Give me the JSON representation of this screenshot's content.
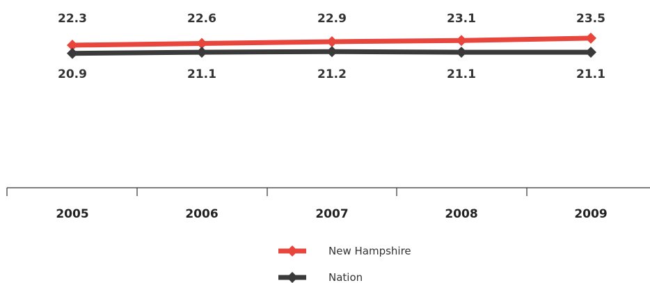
{
  "chart_data": {
    "type": "line",
    "categories": [
      "2005",
      "2006",
      "2007",
      "2008",
      "2009"
    ],
    "series": [
      {
        "name": "New Hampshire",
        "values": [
          22.3,
          22.6,
          22.9,
          23.1,
          23.5
        ],
        "color": "#e8453c",
        "labels": [
          "22.3",
          "22.6",
          "22.9",
          "23.1",
          "23.5"
        ]
      },
      {
        "name": "Nation",
        "values": [
          20.9,
          21.1,
          21.2,
          21.1,
          21.1
        ],
        "color": "#3a3a3a",
        "labels": [
          "20.9",
          "21.1",
          "21.2",
          "21.1",
          "21.1"
        ]
      }
    ],
    "legend_position": "bottom-center",
    "grid": false
  }
}
